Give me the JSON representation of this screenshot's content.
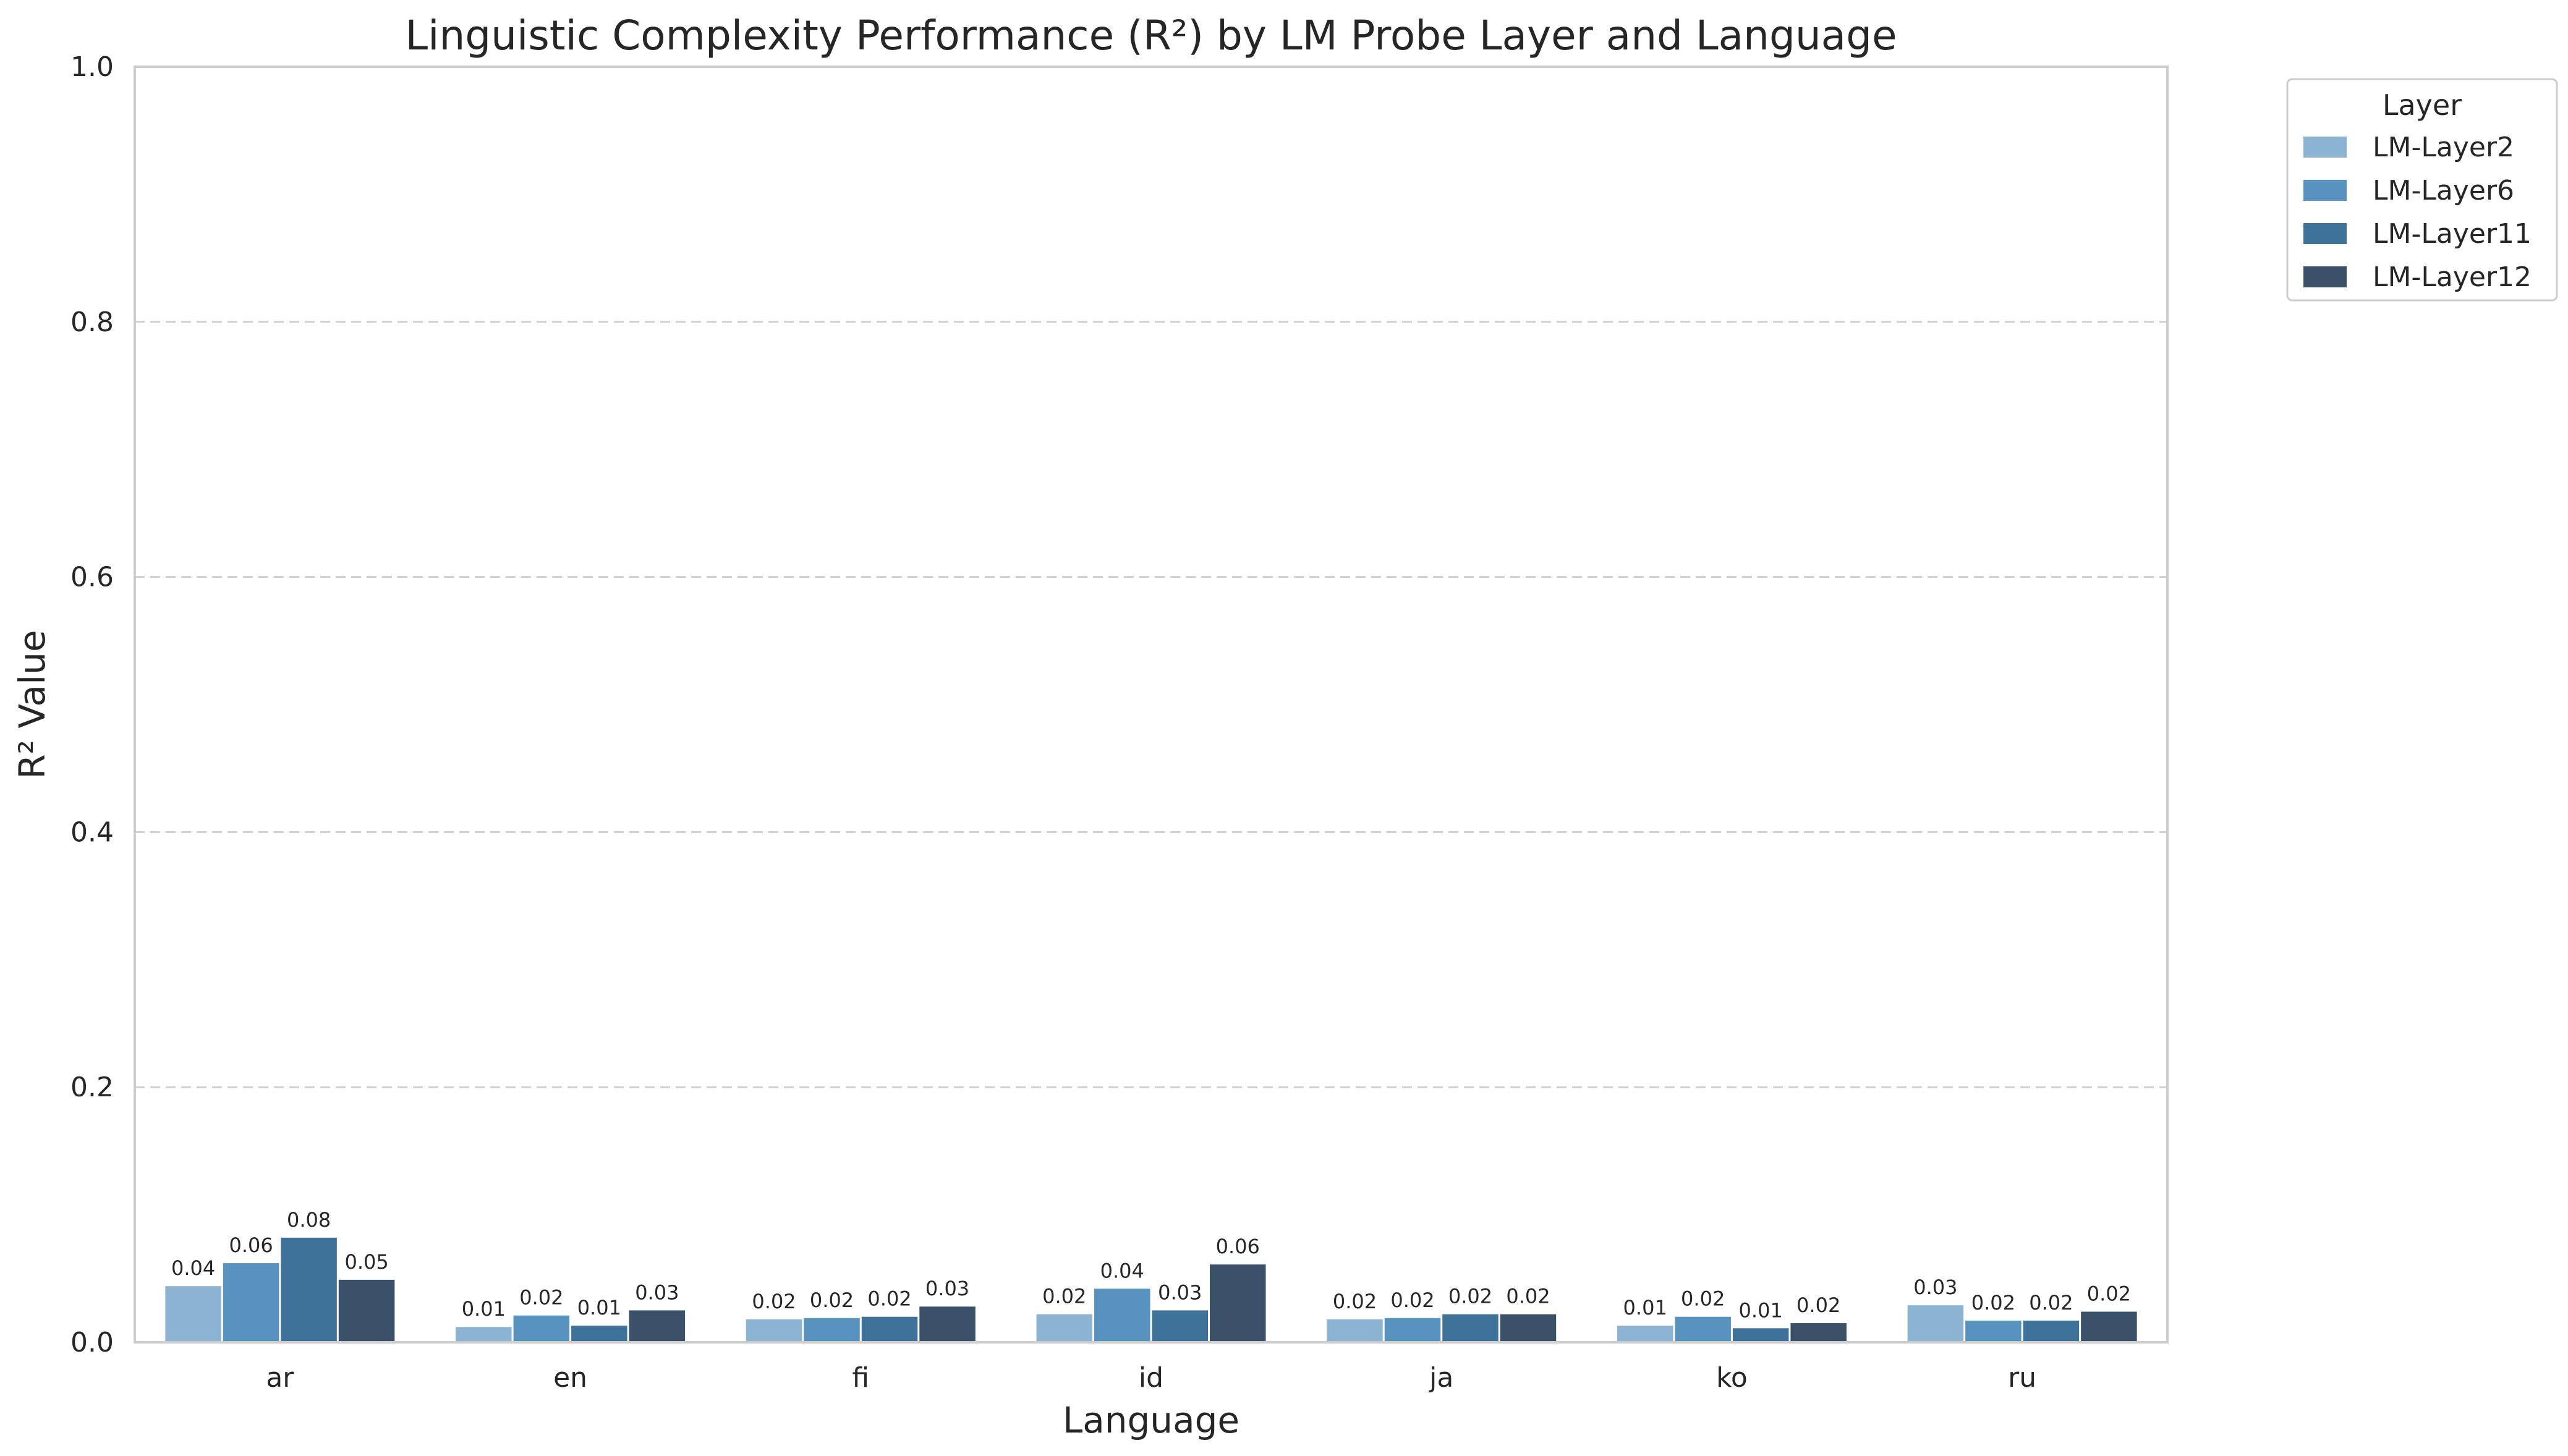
{
  "chart_data": {
    "type": "bar",
    "title": "Linguistic Complexity Performance (R²) by LM Probe Layer and Language",
    "xlabel": "Language",
    "ylabel": "R² Value",
    "ylim": [
      0,
      1.0
    ],
    "yticks": [
      "0.0",
      "0.2",
      "0.4",
      "0.6",
      "0.8",
      "1.0"
    ],
    "grid": "horizontal dashed",
    "categories": [
      "ar",
      "en",
      "fi",
      "id",
      "ja",
      "ko",
      "ru"
    ],
    "legend": {
      "title": "Layer",
      "placement": "outside-top-right"
    },
    "series": [
      {
        "name": "LM-Layer2",
        "color": "#8db3d3",
        "values": [
          0.044,
          0.012,
          0.018,
          0.022,
          0.018,
          0.013,
          0.029
        ],
        "labels": [
          "0.04",
          "0.01",
          "0.02",
          "0.02",
          "0.02",
          "0.01",
          "0.03"
        ]
      },
      {
        "name": "LM-Layer6",
        "color": "#5893bf",
        "values": [
          0.062,
          0.021,
          0.019,
          0.042,
          0.019,
          0.02,
          0.017
        ],
        "labels": [
          "0.06",
          "0.02",
          "0.02",
          "0.04",
          "0.02",
          "0.02",
          "0.02"
        ]
      },
      {
        "name": "LM-Layer11",
        "color": "#3f7299",
        "values": [
          0.082,
          0.013,
          0.02,
          0.025,
          0.022,
          0.011,
          0.017
        ],
        "labels": [
          "0.08",
          "0.01",
          "0.02",
          "0.03",
          "0.02",
          "0.01",
          "0.02"
        ]
      },
      {
        "name": "LM-Layer12",
        "color": "#3a5169",
        "values": [
          0.049,
          0.025,
          0.028,
          0.061,
          0.022,
          0.015,
          0.024
        ],
        "labels": [
          "0.05",
          "0.03",
          "0.03",
          "0.06",
          "0.02",
          "0.02",
          "0.02"
        ]
      }
    ]
  }
}
